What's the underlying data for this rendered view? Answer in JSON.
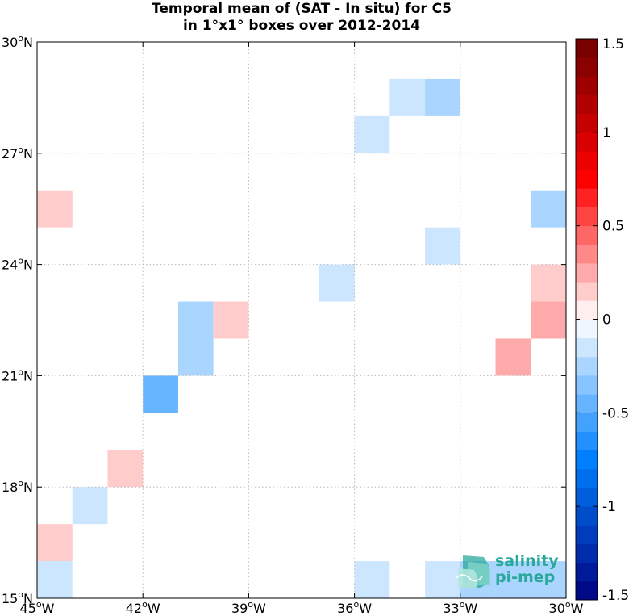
{
  "title": {
    "line1": "Temporal mean of (SAT - In situ) for C5",
    "line2": "in 1°x1° boxes over 2012-2014"
  },
  "map": {
    "lon_range": [
      -45,
      -30
    ],
    "lat_range": [
      15,
      30
    ],
    "grid": "dotted",
    "x_ticks": [
      {
        "lon": -45,
        "deg": "45",
        "hemi": "W"
      },
      {
        "lon": -42,
        "deg": "42",
        "hemi": "W"
      },
      {
        "lon": -39,
        "deg": "39",
        "hemi": "W"
      },
      {
        "lon": -36,
        "deg": "36",
        "hemi": "W"
      },
      {
        "lon": -33,
        "deg": "33",
        "hemi": "W"
      },
      {
        "lon": -30,
        "deg": "30",
        "hemi": "W"
      }
    ],
    "y_ticks": [
      {
        "lat": 15,
        "deg": "15",
        "hemi": "N"
      },
      {
        "lat": 18,
        "deg": "18",
        "hemi": "N"
      },
      {
        "lat": 21,
        "deg": "21",
        "hemi": "N"
      },
      {
        "lat": 24,
        "deg": "24",
        "hemi": "N"
      },
      {
        "lat": 27,
        "deg": "27",
        "hemi": "N"
      },
      {
        "lat": 30,
        "deg": "30",
        "hemi": "N"
      }
    ]
  },
  "chart_data": {
    "type": "heatmap",
    "cell_size_deg": 1,
    "cells": [
      {
        "lon_w": -34,
        "lat_s": 28,
        "value": -0.3
      },
      {
        "lon_w": -35,
        "lat_s": 28,
        "value": -0.15
      },
      {
        "lon_w": -36,
        "lat_s": 27,
        "value": -0.15
      },
      {
        "lon_w": -45,
        "lat_s": 25,
        "value": 0.15
      },
      {
        "lon_w": -31,
        "lat_s": 25,
        "value": -0.3
      },
      {
        "lon_w": -34,
        "lat_s": 24,
        "value": -0.15
      },
      {
        "lon_w": -37,
        "lat_s": 23,
        "value": -0.15
      },
      {
        "lon_w": -31,
        "lat_s": 23,
        "value": 0.15
      },
      {
        "lon_w": -31,
        "lat_s": 22,
        "value": 0.25
      },
      {
        "lon_w": -41,
        "lat_s": 22,
        "value": -0.25
      },
      {
        "lon_w": -40,
        "lat_s": 22,
        "value": 0.15
      },
      {
        "lon_w": -41,
        "lat_s": 21,
        "value": -0.25
      },
      {
        "lon_w": -32,
        "lat_s": 21,
        "value": 0.3
      },
      {
        "lon_w": -42,
        "lat_s": 20,
        "value": -0.45
      },
      {
        "lon_w": -43,
        "lat_s": 18,
        "value": 0.15
      },
      {
        "lon_w": -44,
        "lat_s": 17,
        "value": -0.15
      },
      {
        "lon_w": -45,
        "lat_s": 16,
        "value": 0.15
      },
      {
        "lon_w": -45,
        "lat_s": 15,
        "value": -0.15
      },
      {
        "lon_w": -36,
        "lat_s": 15,
        "value": -0.15
      },
      {
        "lon_w": -34,
        "lat_s": 15,
        "value": -0.15
      },
      {
        "lon_w": -33,
        "lat_s": 15,
        "value": -0.25
      },
      {
        "lon_w": -32,
        "lat_s": 15,
        "value": -0.25
      },
      {
        "lon_w": -31,
        "lat_s": 15,
        "value": -0.2
      }
    ]
  },
  "colorbar": {
    "range": [
      -1.5,
      1.5
    ],
    "step": 0.1,
    "ticks": [
      {
        "value": 1.5,
        "label": "1.5"
      },
      {
        "value": 1,
        "label": "1"
      },
      {
        "value": 0.5,
        "label": "0.5"
      },
      {
        "value": 0,
        "label": "0"
      },
      {
        "value": -0.5,
        "label": "-0.5"
      },
      {
        "value": -1,
        "label": "-1"
      },
      {
        "value": -1.5,
        "label": "-1.5"
      }
    ]
  },
  "logo": {
    "line1": "salinity",
    "line2": "pi-mep",
    "color": "#2aa89c"
  }
}
